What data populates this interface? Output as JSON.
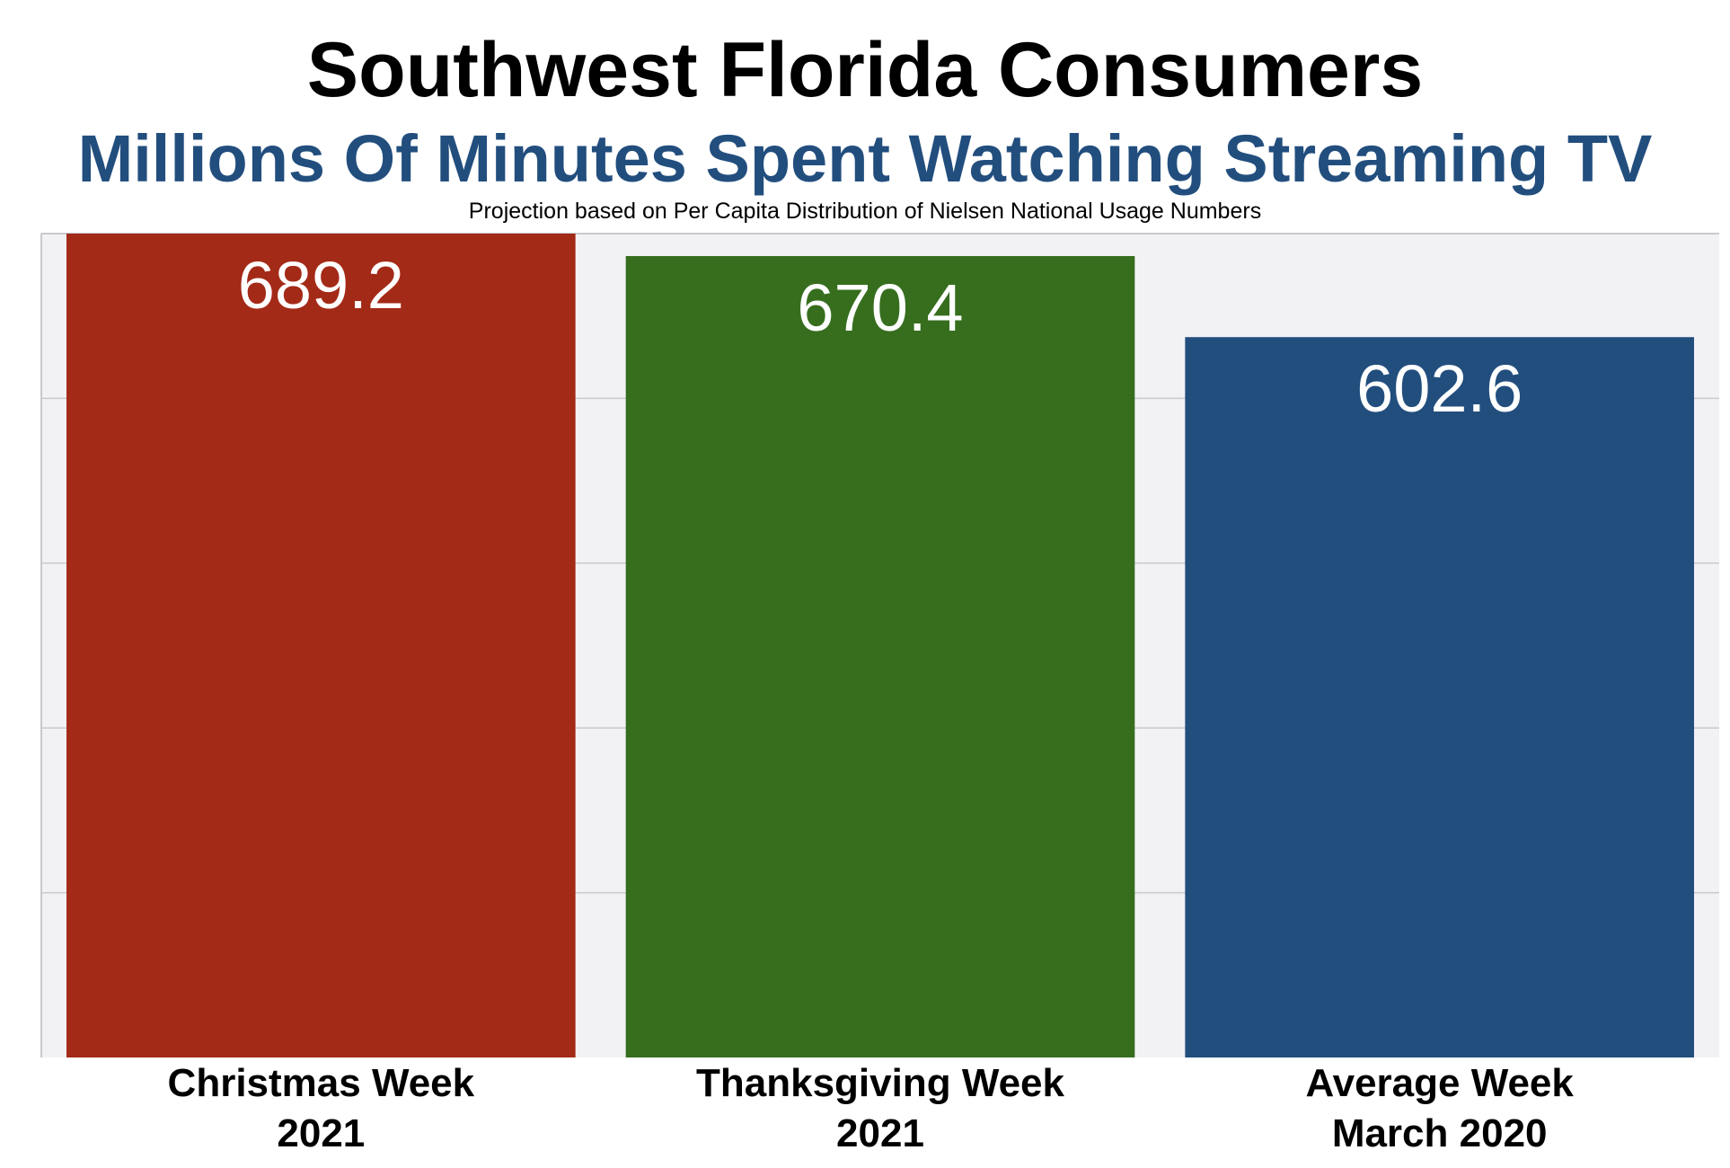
{
  "chart_data": {
    "type": "bar",
    "title": "Southwest Florida Consumers",
    "subtitle": "Millions Of Minutes Spent Watching Streaming TV",
    "note": "Projection based on Per Capita Distribution of Nielsen National Usage Numbers",
    "categories": [
      [
        "Christmas Week",
        "2021"
      ],
      [
        "Thanksgiving Week",
        "2021"
      ],
      [
        "Average Week",
        "March 2020"
      ]
    ],
    "values": [
      689.2,
      670.4,
      602.6
    ],
    "value_labels": [
      "689.2",
      "670.4",
      "602.6"
    ],
    "bar_colors": [
      "#A32A17",
      "#366E1E",
      "#224E7E"
    ],
    "xlabel": "",
    "ylabel": "",
    "ylim": [
      0,
      689.2
    ],
    "grid": true,
    "legend": "none"
  },
  "colors": {
    "subtitle": "#224E7E",
    "plot_background": "#F2F1F4",
    "gridline": "#C9C9CC"
  }
}
